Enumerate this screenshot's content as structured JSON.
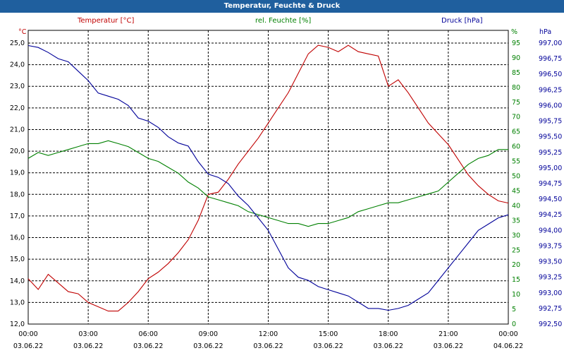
{
  "title": "Temperatur, Feuchte & Druck",
  "legend": {
    "temp": "Temperatur [°C]",
    "humidity": "rel. Feuchte [%]",
    "pressure": "Druck [hPa]"
  },
  "colors": {
    "temp": "#c00000",
    "humidity": "#008000",
    "pressure": "#000099",
    "titlebar": "#1f5f9e"
  },
  "chart_data": {
    "type": "line",
    "title": "Temperatur, Feuchte & Druck",
    "grid": true,
    "x_hours": [
      0,
      0.5,
      1,
      1.5,
      2,
      2.5,
      3,
      3.5,
      4,
      4.5,
      5,
      5.5,
      6,
      6.5,
      7,
      7.5,
      8,
      8.5,
      9,
      9.5,
      10,
      10.5,
      11,
      11.5,
      12,
      12.5,
      13,
      13.5,
      14,
      14.5,
      15,
      15.5,
      16,
      16.5,
      17,
      17.5,
      18,
      18.5,
      19,
      19.5,
      20,
      20.5,
      21,
      21.5,
      22,
      22.5,
      23,
      23.5,
      24
    ],
    "x_ticks": [
      {
        "time": "00:00",
        "date": "03.06.22"
      },
      {
        "time": "03:00",
        "date": "03.06.22"
      },
      {
        "time": "06:00",
        "date": "03.06.22"
      },
      {
        "time": "09:00",
        "date": "03.06.22"
      },
      {
        "time": "12:00",
        "date": "03.06.22"
      },
      {
        "time": "15:00",
        "date": "03.06.22"
      },
      {
        "time": "18:00",
        "date": "03.06.22"
      },
      {
        "time": "21:00",
        "date": "03.06.22"
      },
      {
        "time": "00:00",
        "date": "04.06.22"
      }
    ],
    "axes": {
      "temp": {
        "unit": "°C",
        "min": 12.0,
        "max": 25.0,
        "ticks": [
          "12,0",
          "13,0",
          "14,0",
          "15,0",
          "16,0",
          "17,0",
          "18,0",
          "19,0",
          "20,0",
          "21,0",
          "22,0",
          "23,0",
          "24,0",
          "25,0"
        ]
      },
      "humidity": {
        "unit": "%",
        "min": 0,
        "max": 95,
        "ticks": [
          "0",
          "5",
          "10",
          "15",
          "20",
          "25",
          "30",
          "35",
          "40",
          "45",
          "50",
          "55",
          "60",
          "65",
          "70",
          "75",
          "80",
          "85",
          "90",
          "95"
        ]
      },
      "pressure": {
        "unit": "hPa",
        "min": 992.5,
        "max": 997.0,
        "ticks": [
          "992,50",
          "992,75",
          "993,00",
          "993,25",
          "993,50",
          "993,75",
          "994,00",
          "994,25",
          "994,50",
          "994,75",
          "995,00",
          "995,25",
          "995,50",
          "995,75",
          "996,00",
          "996,25",
          "996,50",
          "996,75",
          "997,00"
        ]
      }
    },
    "series": [
      {
        "name": "Temperatur [°C]",
        "axis": "temp",
        "values": [
          14.1,
          13.6,
          14.3,
          13.9,
          13.5,
          13.4,
          13.0,
          12.8,
          12.6,
          12.6,
          13.0,
          13.5,
          14.1,
          14.4,
          14.8,
          15.3,
          15.9,
          16.8,
          18.0,
          18.1,
          18.7,
          19.4,
          20.0,
          20.6,
          21.3,
          22.0,
          22.7,
          23.6,
          24.5,
          24.9,
          24.8,
          24.6,
          24.9,
          24.6,
          24.5,
          24.4,
          23.0,
          23.3,
          22.7,
          22.0,
          21.3,
          20.8,
          20.3,
          19.6,
          18.9,
          18.4,
          18.0,
          17.7,
          17.6
        ]
      },
      {
        "name": "rel. Feuchte [%]",
        "axis": "humidity",
        "values": [
          56,
          58,
          57,
          58,
          59,
          60,
          61,
          61,
          62,
          61,
          60,
          58,
          56,
          55,
          53,
          51,
          48,
          46,
          43,
          42,
          41,
          40,
          38,
          37,
          36,
          35,
          34,
          34,
          33,
          34,
          34,
          35,
          36,
          38,
          39,
          40,
          41,
          41,
          42,
          43,
          44,
          45,
          48,
          51,
          54,
          56,
          57,
          59,
          59
        ]
      },
      {
        "name": "Druck [hPa]",
        "axis": "pressure",
        "values": [
          996.96,
          996.93,
          996.85,
          996.75,
          996.7,
          996.55,
          996.4,
          996.2,
          996.15,
          996.1,
          996.0,
          995.8,
          995.75,
          995.65,
          995.5,
          995.4,
          995.35,
          995.1,
          994.9,
          994.85,
          994.75,
          994.55,
          994.4,
          994.2,
          994.0,
          993.7,
          993.4,
          993.25,
          993.2,
          993.1,
          993.05,
          993.0,
          992.95,
          992.85,
          992.75,
          992.75,
          992.72,
          992.75,
          992.8,
          992.9,
          993.0,
          993.2,
          993.4,
          993.6,
          993.8,
          994.0,
          994.1,
          994.2,
          994.25
        ]
      }
    ]
  }
}
